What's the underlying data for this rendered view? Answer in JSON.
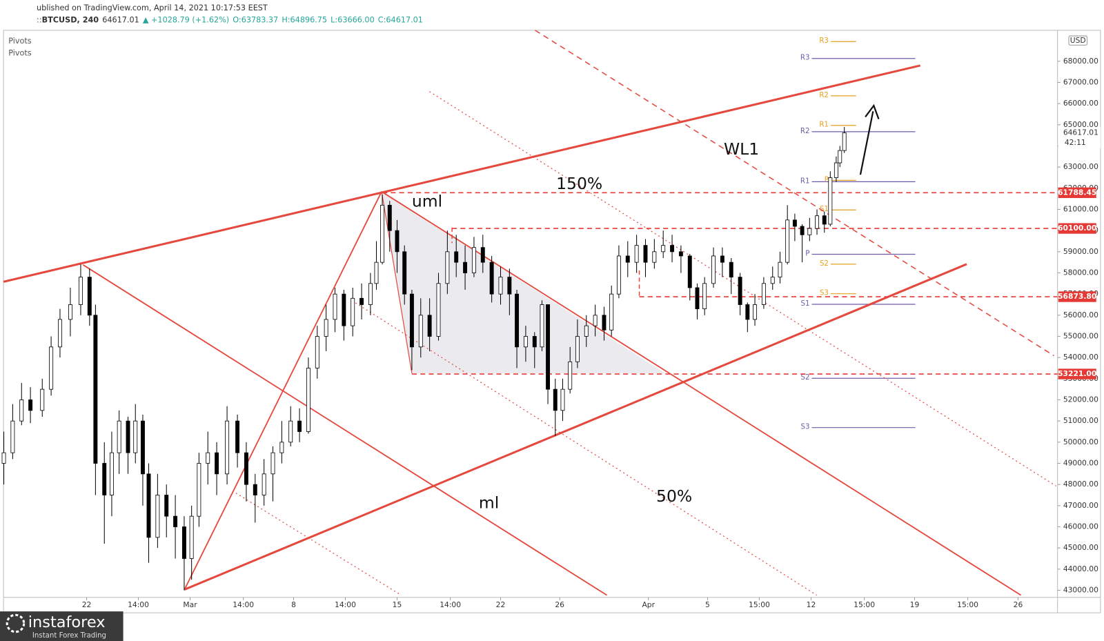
{
  "header": {
    "published": "ublished on TradingView.com, April 14, 2021 10:17:53 EEST",
    "symbol": "BTCUSD, 240",
    "last": "64617.01",
    "change": "▲ +1028.79 (+1.62%)",
    "ohlc": [
      "O:63783.37",
      "H:64896.75",
      "L:63666.00",
      "C:64617.01"
    ]
  },
  "indicators": [
    "Pivots",
    "Pivots"
  ],
  "annotations": [
    "uml",
    "150%",
    "WL1",
    "ml",
    "50%"
  ],
  "logo": {
    "name": "instaforex",
    "tagline": "Instant Forex Trading"
  },
  "chart_data": {
    "type": "candlestick",
    "x": [
      -5.6,
      -5.0,
      -4.4,
      -3.8,
      -3.0,
      -2.4,
      -1.8,
      -1.1,
      -0.4,
      0.2,
      0.6,
      1.2,
      1.7,
      2.2,
      2.8,
      3.3,
      3.8,
      4.2,
      4.8,
      5.4,
      6.0,
      6.6,
      7.1,
      7.6,
      8.2,
      8.8,
      9.5,
      10.2,
      10.8,
      11.4,
      12.0,
      12.6,
      13.2,
      13.8,
      14.4,
      15.0,
      15.6,
      16.2,
      16.8,
      17.4,
      18.0,
      18.6,
      19.2,
      19.6,
      20.0,
      20.5,
      21.0,
      21.5,
      22.0,
      22.6,
      23.2,
      23.8,
      24.4,
      25.0,
      25.6,
      26.2,
      26.8,
      27.4,
      28.0,
      28.6,
      29.1,
      29.7,
      30.3,
      30.8,
      31.2,
      31.7,
      32.2,
      32.7,
      33.2,
      33.8,
      34.4,
      35.0,
      35.5,
      36.0,
      36.6,
      37.2,
      37.8,
      38.4,
      39.0,
      39.6,
      40.2,
      40.8,
      41.3,
      41.8,
      42.4,
      43.0,
      43.6,
      44.2,
      44.7,
      45.2,
      45.8,
      46.4,
      46.9,
      47.4,
      47.9,
      48.4,
      48.9,
      49.4,
      49.9,
      50.3,
      50.7,
      50.95,
      51.25
    ],
    "open": [
      49000,
      49500,
      51000,
      52000,
      51500,
      52500,
      54500,
      55800,
      56500,
      57800,
      56000,
      49000,
      47500,
      49500,
      51000,
      49500,
      51000,
      48500,
      45500,
      47500,
      46500,
      46000,
      44500,
      46500,
      49000,
      49500,
      48500,
      51000,
      49500,
      48000,
      47500,
      48500,
      49500,
      50000,
      51000,
      50500,
      53500,
      55000,
      55800,
      57000,
      55500,
      56800,
      56500,
      57500,
      58500,
      61200,
      60000,
      59000,
      57000,
      54500,
      56000,
      55000,
      57500,
      59000,
      58500,
      58000,
      59200,
      58500,
      57000,
      57800,
      57000,
      54500,
      55000,
      54500,
      56500,
      52500,
      51500,
      52500,
      53800,
      55000,
      55500,
      56000,
      55300,
      57000,
      58800,
      58500,
      59300,
      58500,
      59000,
      59300,
      59000,
      58800,
      57300,
      56300,
      57500,
      58800,
      58500,
      57800,
      56500,
      55800,
      56500,
      57500,
      57800,
      58500,
      60500,
      60200,
      59800,
      60100,
      60700,
      60300,
      62500,
      63200,
      63783.37
    ],
    "high": [
      50500,
      51800,
      52800,
      52600,
      53000,
      55000,
      56300,
      57300,
      58400,
      58200,
      56500,
      50000,
      50500,
      51500,
      51200,
      51800,
      51300,
      49000,
      48500,
      48000,
      47500,
      46500,
      47000,
      49500,
      50500,
      50000,
      51700,
      51300,
      50000,
      48500,
      49200,
      49800,
      51000,
      51700,
      51600,
      54000,
      55500,
      56500,
      57300,
      57200,
      57300,
      57500,
      58000,
      59500,
      61700,
      61400,
      60500,
      59300,
      57200,
      56800,
      56800,
      58000,
      60000,
      59800,
      59300,
      59700,
      59800,
      58800,
      58300,
      58200,
      57200,
      55500,
      55200,
      56700,
      56500,
      53000,
      53000,
      54500,
      55800,
      56000,
      56500,
      56400,
      57400,
      59300,
      59500,
      59800,
      59600,
      59600,
      60000,
      59800,
      59300,
      58900,
      57500,
      57800,
      59200,
      59200,
      58700,
      58000,
      56600,
      57000,
      57800,
      58300,
      59000,
      61200,
      60800,
      60300,
      60600,
      61000,
      60900,
      62800,
      63500,
      64000,
      64896.75
    ],
    "low": [
      48000,
      49200,
      50800,
      50900,
      51200,
      52200,
      54000,
      55000,
      56000,
      55500,
      47500,
      45200,
      46500,
      48500,
      48500,
      49000,
      47000,
      44300,
      45000,
      45500,
      44500,
      43000,
      43500,
      46000,
      48000,
      47500,
      48000,
      48800,
      47200,
      46200,
      47000,
      47200,
      49000,
      49800,
      50000,
      50400,
      53000,
      54300,
      55200,
      54800,
      55000,
      55800,
      56000,
      57200,
      58400,
      59000,
      58000,
      56500,
      53400,
      54000,
      54300,
      54800,
      57000,
      57800,
      57200,
      57800,
      58000,
      56600,
      56500,
      56000,
      53500,
      53800,
      53500,
      54300,
      51800,
      50300,
      51000,
      52300,
      53500,
      54500,
      55000,
      54800,
      55000,
      56800,
      57800,
      58000,
      57800,
      58200,
      58700,
      58500,
      58000,
      56700,
      55800,
      56000,
      57300,
      57800,
      57000,
      56000,
      55200,
      55500,
      56300,
      57200,
      57500,
      58400,
      59500,
      58500,
      59500,
      59800,
      59900,
      60200,
      62300,
      63000,
      63666
    ],
    "close": [
      49500,
      51000,
      52000,
      51500,
      52500,
      54500,
      55800,
      56500,
      57800,
      56000,
      49000,
      47500,
      49500,
      51000,
      49500,
      51000,
      48500,
      45500,
      47500,
      46500,
      46000,
      44500,
      46500,
      49000,
      49500,
      48500,
      51000,
      49500,
      48000,
      47500,
      48500,
      49500,
      50000,
      51000,
      50500,
      53500,
      55000,
      55800,
      57000,
      55500,
      56800,
      56500,
      57500,
      58500,
      61200,
      60000,
      59000,
      57000,
      54500,
      56000,
      55000,
      57500,
      59000,
      58500,
      58000,
      59200,
      58500,
      57000,
      57800,
      57000,
      54500,
      55000,
      54500,
      56500,
      52500,
      51500,
      52500,
      53800,
      55000,
      55500,
      56000,
      55300,
      57000,
      58800,
      58500,
      59300,
      58500,
      59000,
      59300,
      59000,
      58800,
      57300,
      56300,
      57500,
      58800,
      58500,
      57800,
      56500,
      55800,
      56500,
      57500,
      57800,
      58500,
      60500,
      60200,
      59800,
      60100,
      60700,
      60300,
      62500,
      63200,
      63783.37,
      64617.01
    ],
    "up_color": "#ffffff",
    "down_color": "#000000",
    "xlim": [
      -5.62,
      65.67
    ],
    "xticks": [
      {
        "value": 0,
        "label": "22"
      },
      {
        "value": 3.5,
        "label": "14:00"
      },
      {
        "value": 7,
        "label": "Mar"
      },
      {
        "value": 10.6,
        "label": "14:00"
      },
      {
        "value": 14,
        "label": "8"
      },
      {
        "value": 17.5,
        "label": "14:00"
      },
      {
        "value": 21,
        "label": "15"
      },
      {
        "value": 24.6,
        "label": "14:00"
      },
      {
        "value": 28,
        "label": "22"
      },
      {
        "value": 32,
        "label": "26"
      },
      {
        "value": 38,
        "label": "Apr"
      },
      {
        "value": 42,
        "label": "5"
      },
      {
        "value": 45.5,
        "label": "15:00"
      },
      {
        "value": 49,
        "label": "12"
      },
      {
        "value": 52.6,
        "label": "15:00"
      },
      {
        "value": 56,
        "label": "19"
      },
      {
        "value": 59.6,
        "label": "15:00"
      },
      {
        "value": 63,
        "label": "26"
      }
    ],
    "ylim": [
      42667,
      69465
    ],
    "yticks": [
      {
        "value": 43000,
        "label": "43000.00"
      },
      {
        "value": 44000,
        "label": "44000.00"
      },
      {
        "value": 45000,
        "label": "45000.00"
      },
      {
        "value": 46000,
        "label": "46000.00"
      },
      {
        "value": 47000,
        "label": "47000.00"
      },
      {
        "value": 48000,
        "label": "48000.00"
      },
      {
        "value": 49000,
        "label": "49000.00"
      },
      {
        "value": 50000,
        "label": "50000.00"
      },
      {
        "value": 51000,
        "label": "51000.00"
      },
      {
        "value": 52000,
        "label": "52000.00"
      },
      {
        "value": 53000,
        "label": "53000.00"
      },
      {
        "value": 54000,
        "label": "54000.00"
      },
      {
        "value": 55000,
        "label": "55000.00"
      },
      {
        "value": 56000,
        "label": "56000.00"
      },
      {
        "value": 57000,
        "label": "57000.00"
      },
      {
        "value": 58000,
        "label": "58000.00"
      },
      {
        "value": 59000,
        "label": "59000.00"
      },
      {
        "value": 60000,
        "label": "60000.00"
      },
      {
        "value": 61000,
        "label": "61000.00"
      },
      {
        "value": 62000,
        "label": "62000.00"
      },
      {
        "value": 63000,
        "label": "63000.00"
      },
      {
        "value": 64000,
        "label": "64000.00"
      },
      {
        "value": 65000,
        "label": "65000.00"
      },
      {
        "value": 66000,
        "label": "66000.00"
      },
      {
        "value": 67000,
        "label": "67000.00"
      },
      {
        "value": 68000,
        "label": "68000.00"
      }
    ],
    "currency": "USD",
    "last_price": {
      "value": 64617.01,
      "label": "64617.01",
      "countdown": "42:11"
    },
    "price_levels": [
      {
        "value": 61788.45,
        "label": "61788.45",
        "start": 20
      },
      {
        "value": 60100,
        "label": "60100.00",
        "start": 24.71
      },
      {
        "value": 56873.8,
        "label": "56873.80",
        "start": 37.38
      },
      {
        "value": 53221,
        "label": "53221.00",
        "start": 22
      }
    ],
    "level_color": "#e53935",
    "pivots": [
      {
        "color": "#6f5aa8",
        "x_range": [
          49.05,
          56.05
        ],
        "levels": [
          {
            "name": "R3",
            "value": 68133
          },
          {
            "name": "R2",
            "value": 64671
          },
          {
            "name": "R1",
            "value": 62307
          },
          {
            "name": "P",
            "value": 58879
          },
          {
            "name": "S1",
            "value": 56515
          },
          {
            "name": "S2",
            "value": 53020
          },
          {
            "name": "S3",
            "value": 50689
          }
        ]
      },
      {
        "color": "#e5a11f",
        "x_range": [
          50.33,
          52.05
        ],
        "levels": [
          {
            "name": "R3",
            "value": 68932
          },
          {
            "name": "R2",
            "value": 66369
          },
          {
            "name": "R1",
            "value": 64971
          },
          {
            "name": "P",
            "value": 62374
          },
          {
            "name": "S1",
            "value": 60976
          },
          {
            "name": "S2",
            "value": 58413
          },
          {
            "name": "S3",
            "value": 57015
          }
        ]
      }
    ]
  }
}
